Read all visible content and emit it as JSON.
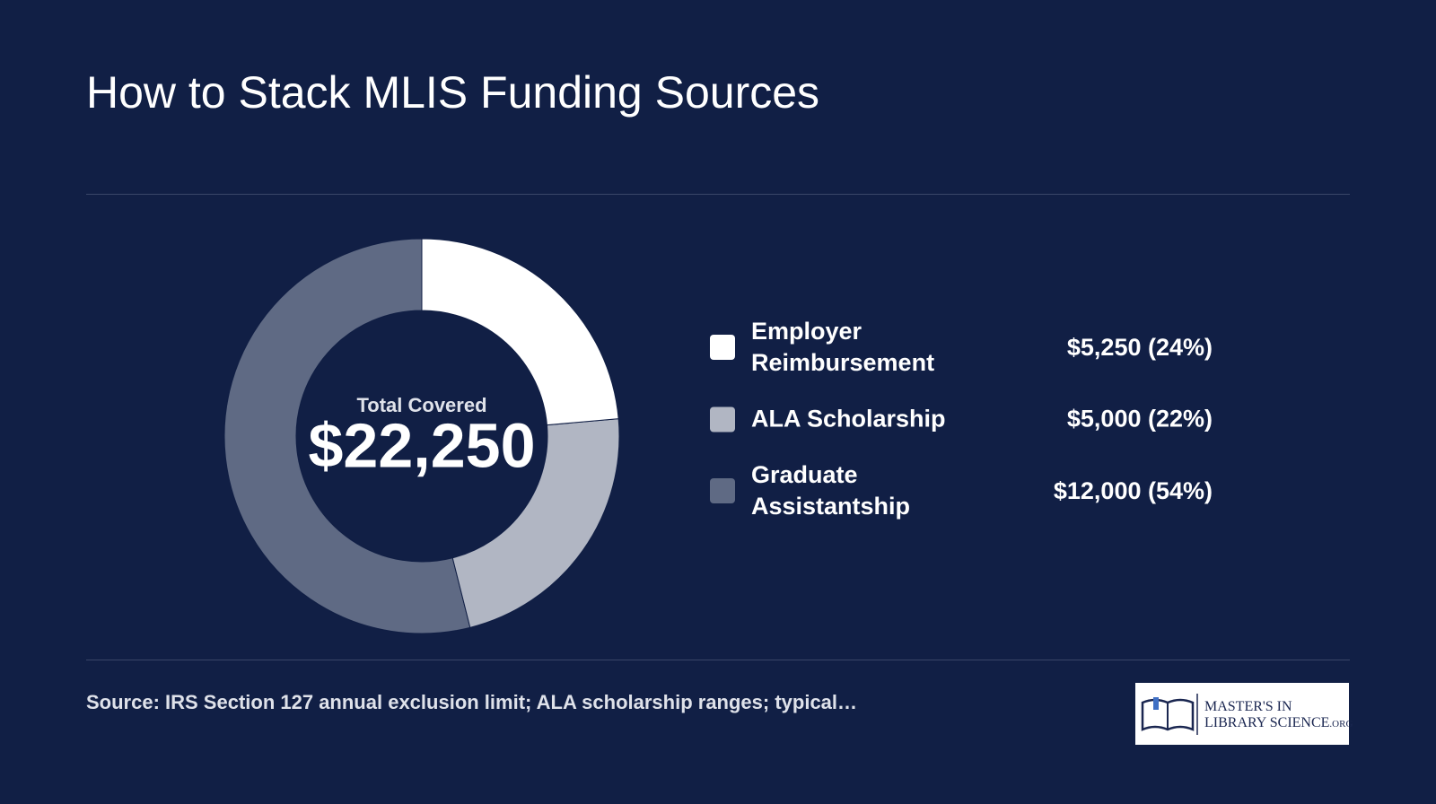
{
  "chart_data": {
    "type": "donut",
    "title": "How to Stack MLIS Funding Sources",
    "categories": [
      "Employer Reimbursement",
      "ALA Scholarship",
      "Graduate Assistantship"
    ],
    "values": [
      5250,
      5000,
      12000
    ],
    "value_labels": [
      "$5,250 (24%)",
      "$5,000 (22%)",
      "$12,000 (54%)"
    ],
    "colors": [
      "#ffffff",
      "#b1b6c3",
      "#5f6a84"
    ],
    "center_label": "Total Covered",
    "total": 22250,
    "total_label": "$22,250",
    "source": "Source: IRS Section 127 annual exclusion limit; ALA scholarship ranges; typical…"
  },
  "logo": {
    "line1": "MASTER'S IN",
    "line2": "LIBRARY SCIENCE",
    "suffix": ".ORG"
  }
}
